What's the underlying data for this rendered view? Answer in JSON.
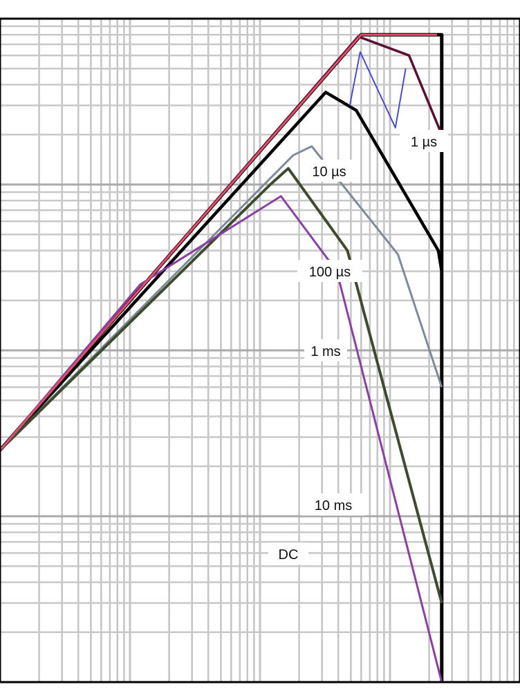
{
  "chart_data": {
    "type": "line",
    "title": "",
    "xlabel": "",
    "ylabel": "",
    "x_scale": "log",
    "y_scale": "log",
    "xlim": [
      1,
      10000
    ],
    "ylim": [
      0.1,
      1000
    ],
    "grid": true,
    "legend": "none",
    "series": [
      {
        "name": "1 µs",
        "color": "#000000",
        "points": [
          [
            1,
            2.5
          ],
          [
            600,
            800
          ],
          [
            2500,
            800
          ],
          [
            2500,
            0.1
          ]
        ]
      },
      {
        "name": "10 µs",
        "color": "#5a0f33",
        "points": [
          [
            1,
            2.5
          ],
          [
            570,
            780
          ],
          [
            1400,
            600
          ],
          [
            2500,
            200
          ]
        ]
      },
      {
        "name": "100 µs",
        "color": "#000000",
        "points": [
          [
            1,
            2.5
          ],
          [
            320,
            360
          ],
          [
            550,
            280
          ],
          [
            2350,
            40
          ],
          [
            2500,
            30
          ]
        ]
      },
      {
        "name": "1 ms",
        "color": "#7f8a99",
        "points": [
          [
            1,
            2.5
          ],
          [
            180,
            150
          ],
          [
            250,
            170
          ],
          [
            1150,
            38
          ],
          [
            2500,
            6
          ]
        ]
      },
      {
        "name": "10 ms",
        "color": "#3f4a2e",
        "points": [
          [
            1,
            2.5
          ],
          [
            120,
            100
          ],
          [
            165,
            125
          ],
          [
            470,
            40
          ],
          [
            2500,
            0.3
          ]
        ]
      },
      {
        "name": "DC",
        "color": "#8b3fa0",
        "points": [
          [
            1,
            2.5
          ],
          [
            12,
            25
          ],
          [
            145,
            85
          ],
          [
            390,
            30
          ],
          [
            2500,
            0.1
          ]
        ]
      },
      {
        "name": "",
        "color": "#4b4bd0",
        "points": [
          [
            490,
            300
          ],
          [
            590,
            630
          ],
          [
            1100,
            220
          ],
          [
            1320,
            500
          ]
        ]
      },
      {
        "name": "",
        "color": "#e0506a",
        "points": [
          [
            1,
            2.5
          ],
          [
            600,
            800
          ],
          [
            2300,
            800
          ]
        ]
      }
    ],
    "labels": [
      "1 µs",
      "10 µs",
      "100 µs",
      "1 ms",
      "10 ms",
      "DC"
    ]
  }
}
